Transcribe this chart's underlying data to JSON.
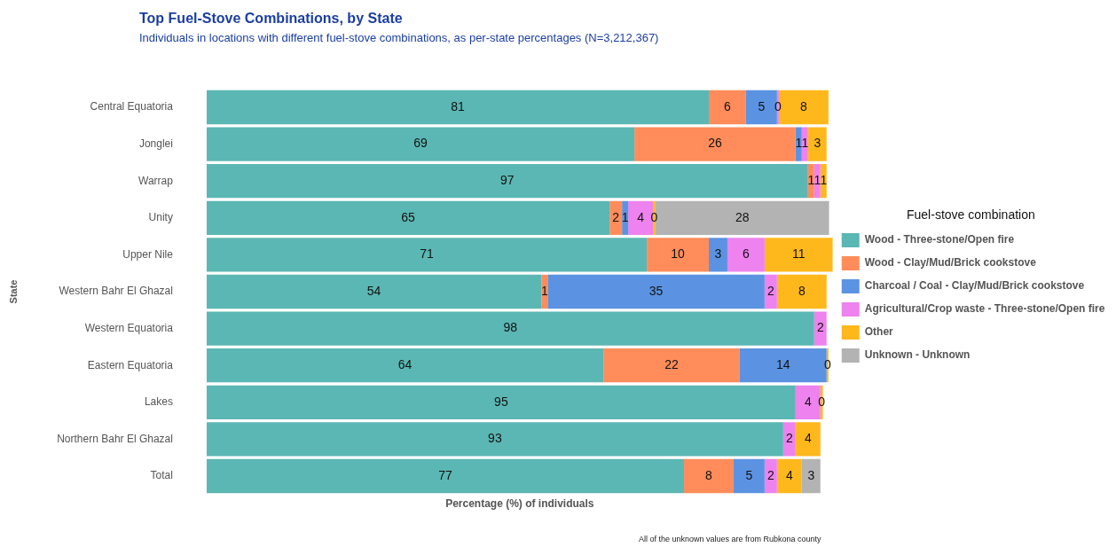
{
  "chart_data": {
    "type": "bar",
    "orientation": "horizontal",
    "stacked": true,
    "title": "Top Fuel-Stove Combinations, by State",
    "subtitle": "Individuals in locations with different fuel-stove combinations, as per-state percentages (N=3,212,367)",
    "xlabel": "Percentage (%) of individuals",
    "ylabel": "State",
    "legend_title": "Fuel-stove combination",
    "legend": "right",
    "tick_labels": "y",
    "annotations": [
      "All of the unknown values are from Rubkona county"
    ],
    "categories": [
      "Central Equatoria",
      "Jonglei",
      "Warrap",
      "Unity",
      "Upper Nile",
      "Western Bahr El Ghazal",
      "Western Equatoria",
      "Eastern Equatoria",
      "Lakes",
      "Northern Bahr El Ghazal",
      "Total"
    ],
    "series": [
      {
        "name": "Wood - Three-stone/Open fire",
        "color": "#5bb7b3",
        "values": [
          81,
          69,
          97,
          65,
          71,
          54,
          98,
          64,
          95,
          93,
          77
        ],
        "value_labels": [
          "81",
          "69",
          "97",
          "65",
          "71",
          "54",
          "98",
          "64",
          "95",
          "93",
          "77"
        ]
      },
      {
        "name": "Wood - Clay/Mud/Brick cookstove",
        "color": "#ff8c5a",
        "values": [
          6,
          26,
          1,
          2,
          10,
          1,
          null,
          22,
          null,
          null,
          8
        ],
        "value_labels": [
          "6",
          "26",
          "1",
          "2",
          "10",
          "1",
          null,
          "22",
          null,
          null,
          "8"
        ]
      },
      {
        "name": "Charcoal / Coal - Clay/Mud/Brick cookstove",
        "color": "#5b93e2",
        "values": [
          5,
          1,
          null,
          1,
          3,
          35,
          null,
          14,
          null,
          null,
          5
        ],
        "value_labels": [
          "5",
          "1",
          null,
          "1",
          "3",
          "35",
          null,
          "14",
          null,
          null,
          "5"
        ]
      },
      {
        "name": "Agricultural/Crop waste - Three-stone/Open fire",
        "color": "#ee82ee",
        "values": [
          0.3,
          1,
          1,
          4,
          6,
          2,
          2,
          null,
          4,
          2,
          2
        ],
        "value_labels": [
          "0",
          "1",
          "1",
          "4",
          "6",
          "2",
          "2",
          null,
          "4",
          "2",
          "2"
        ]
      },
      {
        "name": "Other",
        "color": "#ffb81c",
        "values": [
          8,
          3,
          1,
          0.4,
          11,
          8,
          null,
          0.3,
          0.4,
          4,
          4
        ],
        "value_labels": [
          "8",
          "3",
          "1",
          "0",
          "11",
          "8",
          null,
          "0",
          "0",
          "4",
          "4"
        ]
      },
      {
        "name": "Unknown - Unknown",
        "color": "#b3b3b3",
        "values": [
          null,
          null,
          null,
          28,
          null,
          null,
          null,
          null,
          null,
          null,
          3
        ],
        "value_labels": [
          null,
          null,
          null,
          "28",
          null,
          null,
          null,
          null,
          null,
          null,
          "3"
        ]
      }
    ]
  }
}
